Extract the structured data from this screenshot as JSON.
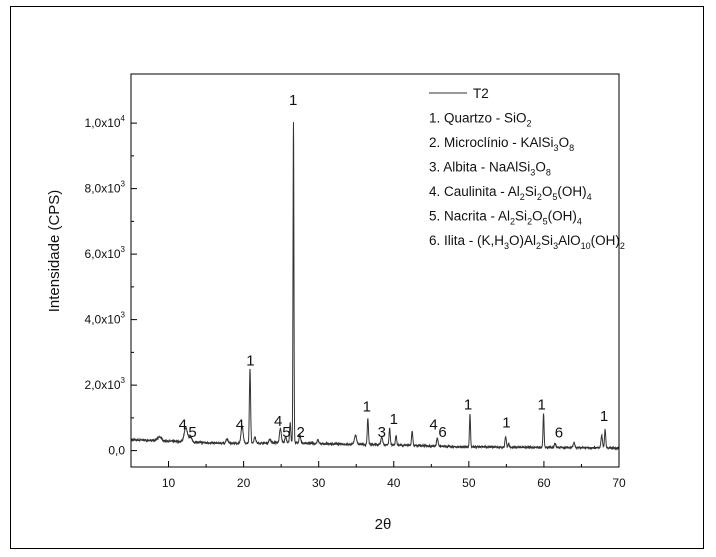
{
  "chart_data": {
    "type": "line",
    "xlabel": "2θ",
    "ylabel": "Intensidade (CPS)",
    "xlim": [
      5,
      70
    ],
    "ylim": [
      -500,
      11500
    ],
    "xticks": [
      10,
      20,
      30,
      40,
      50,
      60,
      70
    ],
    "yticks": [
      {
        "value": 0,
        "mant": "0,0",
        "exp": ""
      },
      {
        "value": 2000,
        "mant": "2,0x10",
        "exp": "3"
      },
      {
        "value": 4000,
        "mant": "4,0x10",
        "exp": "3"
      },
      {
        "value": 6000,
        "mant": "6,0x10",
        "exp": "3"
      },
      {
        "value": 8000,
        "mant": "8,0x10",
        "exp": "3"
      },
      {
        "value": 10000,
        "mant": "1,0x10",
        "exp": "4"
      }
    ],
    "series": [
      {
        "name": "T2",
        "color": "#333333",
        "background": [
          [
            5,
            330
          ],
          [
            8,
            310
          ],
          [
            10,
            290
          ],
          [
            12,
            270
          ],
          [
            15,
            240
          ],
          [
            18,
            220
          ],
          [
            20,
            230
          ],
          [
            23,
            230
          ],
          [
            25,
            250
          ],
          [
            28,
            230
          ],
          [
            30,
            210
          ],
          [
            33,
            200
          ],
          [
            35,
            190
          ],
          [
            38,
            180
          ],
          [
            40,
            170
          ],
          [
            43,
            160
          ],
          [
            45,
            140
          ],
          [
            48,
            120
          ],
          [
            50,
            115
          ],
          [
            53,
            110
          ],
          [
            55,
            105
          ],
          [
            58,
            100
          ],
          [
            60,
            100
          ],
          [
            63,
            95
          ],
          [
            65,
            90
          ],
          [
            68,
            85
          ],
          [
            70,
            80
          ]
        ],
        "peaks": [
          {
            "x": 8.8,
            "h": 120,
            "w": 0.25
          },
          {
            "x": 12.3,
            "h": 420,
            "w": 0.22
          },
          {
            "x": 12.9,
            "h": 150,
            "w": 0.2
          },
          {
            "x": 17.8,
            "h": 130,
            "w": 0.15
          },
          {
            "x": 19.8,
            "h": 520,
            "w": 0.14
          },
          {
            "x": 20.85,
            "h": 2270,
            "w": 0.08
          },
          {
            "x": 21.5,
            "h": 180,
            "w": 0.12
          },
          {
            "x": 23.5,
            "h": 120,
            "w": 0.12
          },
          {
            "x": 24.9,
            "h": 420,
            "w": 0.12
          },
          {
            "x": 25.6,
            "h": 180,
            "w": 0.1
          },
          {
            "x": 26.2,
            "h": 600,
            "w": 0.08
          },
          {
            "x": 26.64,
            "h": 9800,
            "w": 0.06
          },
          {
            "x": 27.5,
            "h": 250,
            "w": 0.1
          },
          {
            "x": 29.9,
            "h": 120,
            "w": 0.1
          },
          {
            "x": 34.9,
            "h": 280,
            "w": 0.15
          },
          {
            "x": 36.55,
            "h": 800,
            "w": 0.08
          },
          {
            "x": 38.4,
            "h": 220,
            "w": 0.12
          },
          {
            "x": 39.45,
            "h": 500,
            "w": 0.08
          },
          {
            "x": 40.3,
            "h": 300,
            "w": 0.08
          },
          {
            "x": 42.45,
            "h": 430,
            "w": 0.08
          },
          {
            "x": 45.8,
            "h": 260,
            "w": 0.1
          },
          {
            "x": 50.15,
            "h": 990,
            "w": 0.07
          },
          {
            "x": 54.9,
            "h": 320,
            "w": 0.09
          },
          {
            "x": 55.3,
            "h": 120,
            "w": 0.08
          },
          {
            "x": 59.95,
            "h": 1030,
            "w": 0.07
          },
          {
            "x": 61.5,
            "h": 120,
            "w": 0.1
          },
          {
            "x": 64.0,
            "h": 170,
            "w": 0.1
          },
          {
            "x": 67.7,
            "h": 380,
            "w": 0.1
          },
          {
            "x": 68.15,
            "h": 560,
            "w": 0.08
          }
        ]
      }
    ],
    "annotations": [
      {
        "text": "1",
        "x": 26.6,
        "y": 10550
      },
      {
        "text": "1",
        "x": 20.9,
        "y": 2600
      },
      {
        "text": "4",
        "x": 11.9,
        "y": 650
      },
      {
        "text": "5",
        "x": 13.2,
        "y": 420
      },
      {
        "text": "4",
        "x": 19.5,
        "y": 650
      },
      {
        "text": "4",
        "x": 24.6,
        "y": 750
      },
      {
        "text": "5",
        "x": 25.7,
        "y": 420
      },
      {
        "text": "2",
        "x": 27.6,
        "y": 420
      },
      {
        "text": "1",
        "x": 36.4,
        "y": 1200
      },
      {
        "text": "3",
        "x": 38.4,
        "y": 420
      },
      {
        "text": "1",
        "x": 40.0,
        "y": 820
      },
      {
        "text": "4",
        "x": 45.3,
        "y": 650
      },
      {
        "text": "6",
        "x": 46.5,
        "y": 420
      },
      {
        "text": "1",
        "x": 49.9,
        "y": 1250
      },
      {
        "text": "1",
        "x": 55.0,
        "y": 700
      },
      {
        "text": "1",
        "x": 59.7,
        "y": 1250
      },
      {
        "text": "6",
        "x": 62.0,
        "y": 400
      },
      {
        "text": "1",
        "x": 68.0,
        "y": 900
      }
    ],
    "legend": {
      "placement": "top-right",
      "items": [
        {
          "parts": [
            {
              "t": "T2"
            }
          ]
        },
        {
          "parts": [
            {
              "t": "1. Quartzo - SiO"
            },
            {
              "t": "2",
              "sub": true
            }
          ]
        },
        {
          "parts": [
            {
              "t": "2. Microclínio - KAlSi"
            },
            {
              "t": "3",
              "sub": true
            },
            {
              "t": "O"
            },
            {
              "t": "8",
              "sub": true
            }
          ]
        },
        {
          "parts": [
            {
              "t": "3. Albita - NaAlSi"
            },
            {
              "t": "3",
              "sub": true
            },
            {
              "t": "O"
            },
            {
              "t": "8",
              "sub": true
            }
          ]
        },
        {
          "parts": [
            {
              "t": "4. Caulinita - Al"
            },
            {
              "t": "2",
              "sub": true
            },
            {
              "t": "Si"
            },
            {
              "t": "2",
              "sub": true
            },
            {
              "t": "O"
            },
            {
              "t": "5",
              "sub": true
            },
            {
              "t": "(OH)"
            },
            {
              "t": "4",
              "sub": true
            }
          ]
        },
        {
          "parts": [
            {
              "t": "5. Nacrita - Al"
            },
            {
              "t": "2",
              "sub": true
            },
            {
              "t": "Si"
            },
            {
              "t": "2",
              "sub": true
            },
            {
              "t": "O"
            },
            {
              "t": "5",
              "sub": true
            },
            {
              "t": "(OH)"
            },
            {
              "t": "4",
              "sub": true
            }
          ]
        },
        {
          "parts": [
            {
              "t": "6. Ilita -  (K,H"
            },
            {
              "t": "3",
              "sub": true
            },
            {
              "t": "O)Al"
            },
            {
              "t": "2",
              "sub": true
            },
            {
              "t": "Si"
            },
            {
              "t": "3",
              "sub": true
            },
            {
              "t": "AlO"
            },
            {
              "t": "10",
              "sub": true
            },
            {
              "t": "(OH)"
            },
            {
              "t": "2",
              "sub": true
            }
          ]
        }
      ]
    }
  }
}
